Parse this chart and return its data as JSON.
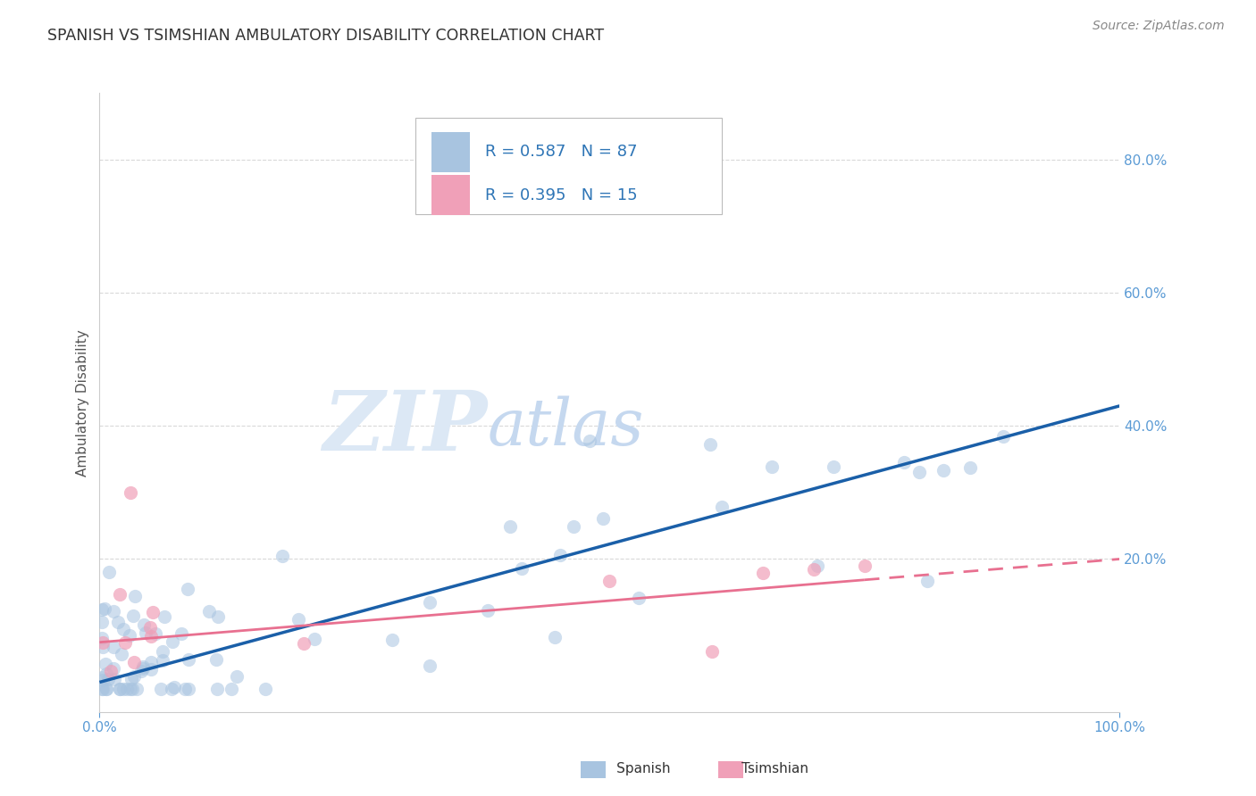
{
  "title": "SPANISH VS TSIMSHIAN AMBULATORY DISABILITY CORRELATION CHART",
  "source_text": "Source: ZipAtlas.com",
  "ylabel": "Ambulatory Disability",
  "R_spanish": 0.587,
  "N_spanish": 87,
  "R_tsimshian": 0.395,
  "N_tsimshian": 15,
  "xlim": [
    0,
    100
  ],
  "ylim": [
    -3,
    90
  ],
  "ytick_values": [
    20,
    40,
    60,
    80
  ],
  "background_color": "#ffffff",
  "title_color": "#333333",
  "tick_color": "#5b9bd5",
  "grid_color": "#d0d0d0",
  "spanish_color": "#a8c4e0",
  "tsimshian_color": "#f0a0b8",
  "line_spanish_color": "#1a5fa8",
  "line_tsimshian_color": "#e87090",
  "watermark_zip_color": "#dce8f5",
  "watermark_atlas_color": "#c8daf0",
  "legend_color": "#2e75b6",
  "legend_N_color": "#e05010",
  "spine_color": "#cccccc",
  "regression_spanish_x0": 0,
  "regression_spanish_y0": 1.5,
  "regression_spanish_x1": 100,
  "regression_spanish_y1": 43.0,
  "regression_tsimshian_x0": 0,
  "regression_tsimshian_y0": 7.5,
  "regression_tsimshian_x1": 100,
  "regression_tsimshian_y1": 20.0,
  "tsimshian_solid_end_x": 75,
  "seed_spanish": 17,
  "seed_tsimshian": 99
}
